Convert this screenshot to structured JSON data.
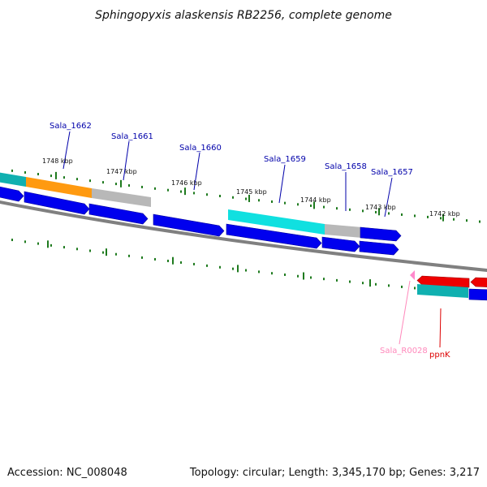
{
  "title": "Sphingopyxis alaskensis RB2256, complete genome",
  "footer": {
    "accession": "Accession: NC_008048",
    "summary": "Topology: circular; Length: 3,345,170 bp; Genes: 3,217"
  },
  "colors": {
    "backbone": "#808080",
    "tick": "#1e7a1e",
    "cds": "#0000ee",
    "cds_dark": "#00009a",
    "cyan": "#10e0e0",
    "teal": "#10b0b0",
    "orange": "#ff9a10",
    "grey": "#b8b8b8",
    "red": "#ee0000",
    "pink": "#ff88cc",
    "label_blue": "#0000aa",
    "label_red": "#dd0000",
    "label_pink": "#ff88bb"
  },
  "kbp_labels": [
    "1748 kbp",
    "1747 kbp",
    "1746 kbp",
    "1745 kbp",
    "1744 kbp",
    "1743 kbp",
    "1742 kbp"
  ],
  "gene_labels": [
    {
      "id": "label-sala-1662",
      "text": "Sala_1662",
      "color": "label_blue"
    },
    {
      "id": "label-sala-1661",
      "text": "Sala_1661",
      "color": "label_blue"
    },
    {
      "id": "label-sala-1660",
      "text": "Sala_1660",
      "color": "label_blue"
    },
    {
      "id": "label-sala-1659",
      "text": "Sala_1659",
      "color": "label_blue"
    },
    {
      "id": "label-sala-1658",
      "text": "Sala_1658",
      "color": "label_blue"
    },
    {
      "id": "label-sala-1657",
      "text": "Sala_1657",
      "color": "label_blue"
    },
    {
      "id": "label-sala-r0028",
      "text": "Sala_R0028",
      "color": "label_pink"
    },
    {
      "id": "label-ppnk",
      "text": "ppnK",
      "color": "label_red"
    }
  ]
}
